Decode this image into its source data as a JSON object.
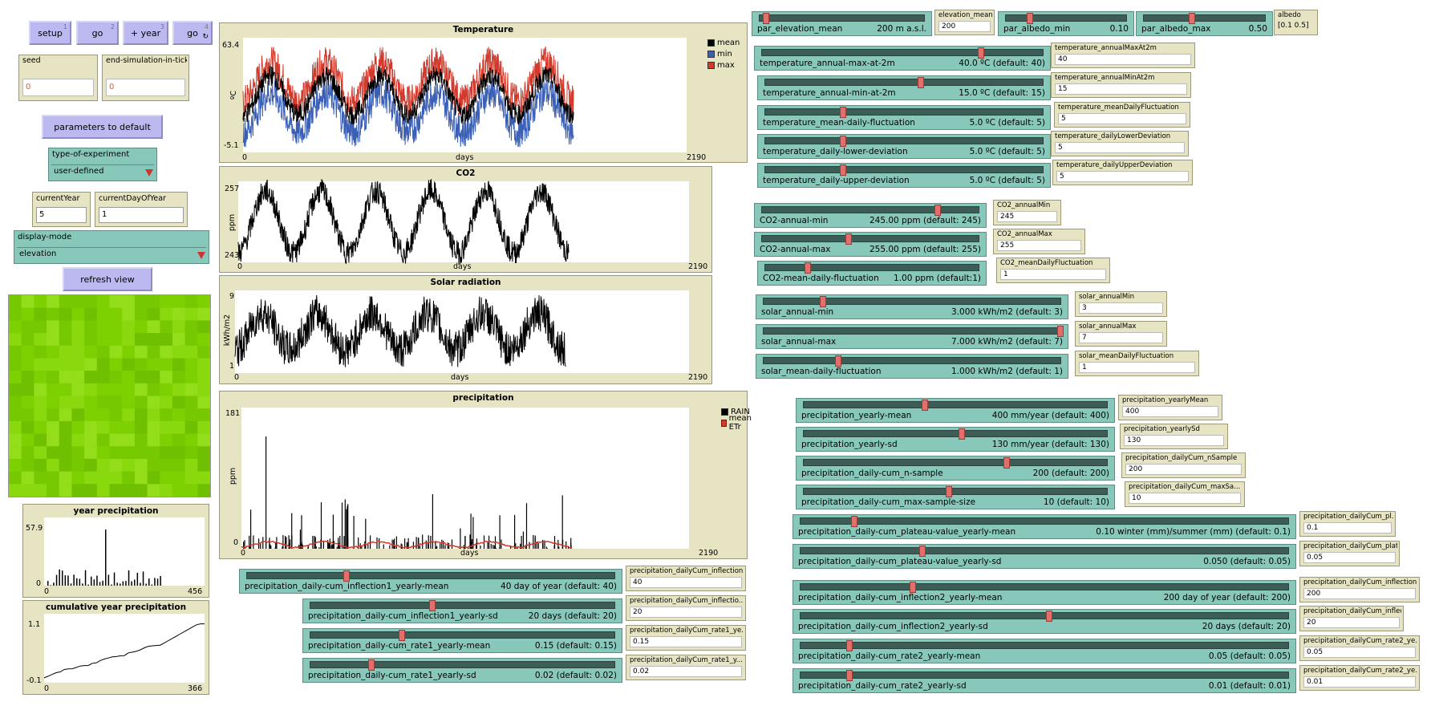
{
  "buttons": {
    "setup": {
      "label": "setup",
      "key": "1"
    },
    "go_once": {
      "label": "go",
      "key": "2"
    },
    "plus_year": {
      "label": "+ year",
      "key": "3"
    },
    "go_forever": {
      "label": "go",
      "key": "4"
    },
    "parameters_default": {
      "label": "parameters to default"
    },
    "refresh_view": {
      "label": "refresh view"
    }
  },
  "inputs_left": {
    "seed": {
      "label": "seed",
      "value": "0"
    },
    "end_tick": {
      "label": "end-simulation-in-tick",
      "value": "0"
    }
  },
  "type_of_experiment": {
    "label": "type-of-experiment",
    "value": "user-defined"
  },
  "monitors": {
    "current_year": {
      "label": "currentYear",
      "value": "5"
    },
    "current_day": {
      "label": "currentDayOfYear",
      "value": "1"
    }
  },
  "display_mode": {
    "label": "display-mode",
    "value": "elevation"
  },
  "world_colors": [
    "#7ed100",
    "#8ad80e",
    "#76c800",
    "#93dd1a",
    "#6fc000"
  ],
  "plots": {
    "temperature": {
      "title": "Temperature",
      "ylabel": "ºC",
      "xlabel": "days",
      "ymin": "-5.1",
      "ymax": "63.4",
      "xmin": "0",
      "xmax": "2190",
      "legend": [
        {
          "name": "mean",
          "color": "#000000"
        },
        {
          "name": "min",
          "color": "#3a5fb4"
        },
        {
          "name": "max",
          "color": "#d43a2c"
        }
      ]
    },
    "co2": {
      "title": "CO2",
      "ylabel": "ppm",
      "xlabel": "days",
      "ymin": "243",
      "ymax": "257",
      "xmin": "0",
      "xmax": "2190"
    },
    "solar": {
      "title": "Solar radiation",
      "ylabel": "kWh/m2",
      "xlabel": "days",
      "ymin": "1",
      "ymax": "9",
      "xmin": "0",
      "xmax": "2190"
    },
    "precipitation": {
      "title": "precipitation",
      "ylabel": "ppm",
      "xlabel": "days",
      "ymin": "0",
      "ymax": "181",
      "xmin": "0",
      "xmax": "2190",
      "legend": [
        {
          "name": "RAIN",
          "color": "#000000"
        },
        {
          "name": "mean ETr",
          "color": "#d43a2c"
        }
      ]
    },
    "year_precip": {
      "title": "year precipitation",
      "ymin": "0",
      "ymax": "57.9",
      "xmin": "0",
      "xmax": "456"
    },
    "cum_year_precip": {
      "title": "cumulative year precipitation",
      "ymin": "-0.1",
      "ymax": "1.1",
      "xmin": "0",
      "xmax": "366"
    }
  },
  "top_sliders": {
    "elevation_mean": {
      "label": "par_elevation_mean",
      "value": "200 m a.s.l.",
      "pos": 0.04
    },
    "albedo_min": {
      "label": "par_albedo_min",
      "value": "0.10",
      "pos": 0.2
    },
    "albedo_max": {
      "label": "par_albedo_max",
      "value": "0.50",
      "pos": 0.4
    }
  },
  "top_inputs": {
    "elevation_mean": {
      "label": "elevation_mean",
      "value": "200"
    },
    "albedo": {
      "label": "albedo",
      "value": "[0.1 0.5]"
    }
  },
  "param_rows_right_top": [
    {
      "slider": "temperature_annual-max-at-2m",
      "value": "40.0 ºC (default: 40)",
      "pos": 0.78,
      "input": "temperature_annualMaxAt2m",
      "ivalue": "40"
    },
    {
      "slider": "temperature_annual-min-at-2m",
      "value": "15.0 ºC (default: 15)",
      "pos": 0.56,
      "input": "temperature_annualMinAt2m",
      "ivalue": "15"
    },
    {
      "slider": "temperature_mean-daily-fluctuation",
      "value": "5.0 ºC (default: 5)",
      "pos": 0.28,
      "input": "temperature_meanDailyFluctuation",
      "ivalue": "5"
    },
    {
      "slider": "temperature_daily-lower-deviation",
      "value": "5.0 ºC (default: 5)",
      "pos": 0.28,
      "input": "temperature_dailyLowerDeviation",
      "ivalue": "5"
    },
    {
      "slider": "temperature_daily-upper-deviation",
      "value": "5.0 ºC (default: 5)",
      "pos": 0.28,
      "input": "temperature_dailyUpperDeviation",
      "ivalue": "5"
    },
    {
      "slider": "CO2-annual-min",
      "value": "245.00 ppm (default: 245)",
      "pos": 0.81,
      "input": "CO2_annualMin",
      "ivalue": "245"
    },
    {
      "slider": "CO2-annual-max",
      "value": "255.00 ppm (default: 255)",
      "pos": 0.4,
      "input": "CO2_annualMax",
      "ivalue": "255"
    },
    {
      "slider": "CO2-mean-daily-fluctuation",
      "value": "1.00 ppm (default:1)",
      "pos": 0.2,
      "input": "CO2_meanDailyFluctuation",
      "ivalue": "1"
    },
    {
      "slider": "solar_annual-min",
      "value": "3.000 kWh/m2 (default: 3)",
      "pos": 0.2,
      "input": "solar_annualMin",
      "ivalue": "3"
    },
    {
      "slider": "solar_annual-max",
      "value": "7.000 kWh/m2 (default: 7)",
      "pos": 1.0,
      "input": "solar_annualMax",
      "ivalue": "7"
    },
    {
      "slider": "solar_mean-daily-fluctuation",
      "value": "1.000 kWh/m2 (default: 1)",
      "pos": 0.25,
      "input": "solar_meanDailyFluctuation",
      "ivalue": "1"
    }
  ],
  "param_rows_precip": [
    {
      "slider": "precipitation_yearly-mean",
      "value": "400 mm/year (default: 400)",
      "pos": 0.4,
      "input": "precipitation_yearlyMean",
      "ivalue": "400"
    },
    {
      "slider": "precipitation_yearly-sd",
      "value": "130 mm/year (default: 130)",
      "pos": 0.52,
      "input": "precipitation_yearlySd",
      "ivalue": "130"
    },
    {
      "slider": "precipitation_daily-cum_n-sample",
      "value": "200 (default: 200)",
      "pos": 0.67,
      "input": "precipitation_dailyCum_nSample",
      "ivalue": "200"
    },
    {
      "slider": "precipitation_daily-cum_max-sample-size",
      "value": "10 (default: 10)",
      "pos": 0.48,
      "input": "precipitation_dailyCum_maxSa...",
      "ivalue": "10"
    }
  ],
  "param_rows_lower_right": [
    {
      "slider": "precipitation_daily-cum_plateau-value_yearly-mean",
      "value": "0.10 winter (mm)/summer (mm) (default: 0.1)",
      "pos": 0.11,
      "input": "precipitation_dailyCum_pl...",
      "ivalue": "0.1"
    },
    {
      "slider": "precipitation_daily-cum_plateau-value_yearly-sd",
      "value": "0.050 (default: 0.05)",
      "pos": 0.25,
      "input": "precipitation_dailyCum_plat...",
      "ivalue": "0.05"
    },
    {
      "slider": "precipitation_daily-cum_inflection2_yearly-mean",
      "value": "200 day of year (default: 200)",
      "pos": 0.23,
      "input": "precipitation_dailyCum_inflection...",
      "ivalue": "200"
    },
    {
      "slider": "precipitation_daily-cum_inflection2_yearly-sd",
      "value": "20 days (default: 20)",
      "pos": 0.51,
      "input": "precipitation_dailyCum_inflectio...",
      "ivalue": "20"
    },
    {
      "slider": "precipitation_daily-cum_rate2_yearly-mean",
      "value": "0.05 (default: 0.05)",
      "pos": 0.1,
      "input": "precipitation_dailyCum_rate2_ye...",
      "ivalue": "0.05"
    },
    {
      "slider": "precipitation_daily-cum_rate2_yearly-sd",
      "value": "0.01 (default: 0.01)",
      "pos": 0.1,
      "input": "precipitation_dailyCum_rate2_ye...",
      "ivalue": "0.01"
    }
  ],
  "param_rows_lower_left": [
    {
      "slider": "precipitation_daily-cum_inflection1_yearly-mean",
      "value": "40 day of year (default: 40)",
      "pos": 0.27,
      "input": "precipitation_dailyCum_inflection...",
      "ivalue": "40"
    },
    {
      "slider": "precipitation_daily-cum_inflection1_yearly-sd",
      "value": "20 days (default: 20)",
      "pos": 0.4,
      "input": "precipitation_dailyCum_inflectio...",
      "ivalue": "20"
    },
    {
      "slider": "precipitation_daily-cum_rate1_yearly-mean",
      "value": "0.15 (default: 0.15)",
      "pos": 0.3,
      "input": "precipitation_dailyCum_rate1_ye...",
      "ivalue": "0.15"
    },
    {
      "slider": "precipitation_daily-cum_rate1_yearly-sd",
      "value": "0.02 (default: 0.02)",
      "pos": 0.2,
      "input": "precipitation_dailyCum_rate1_y...",
      "ivalue": "0.02"
    }
  ]
}
